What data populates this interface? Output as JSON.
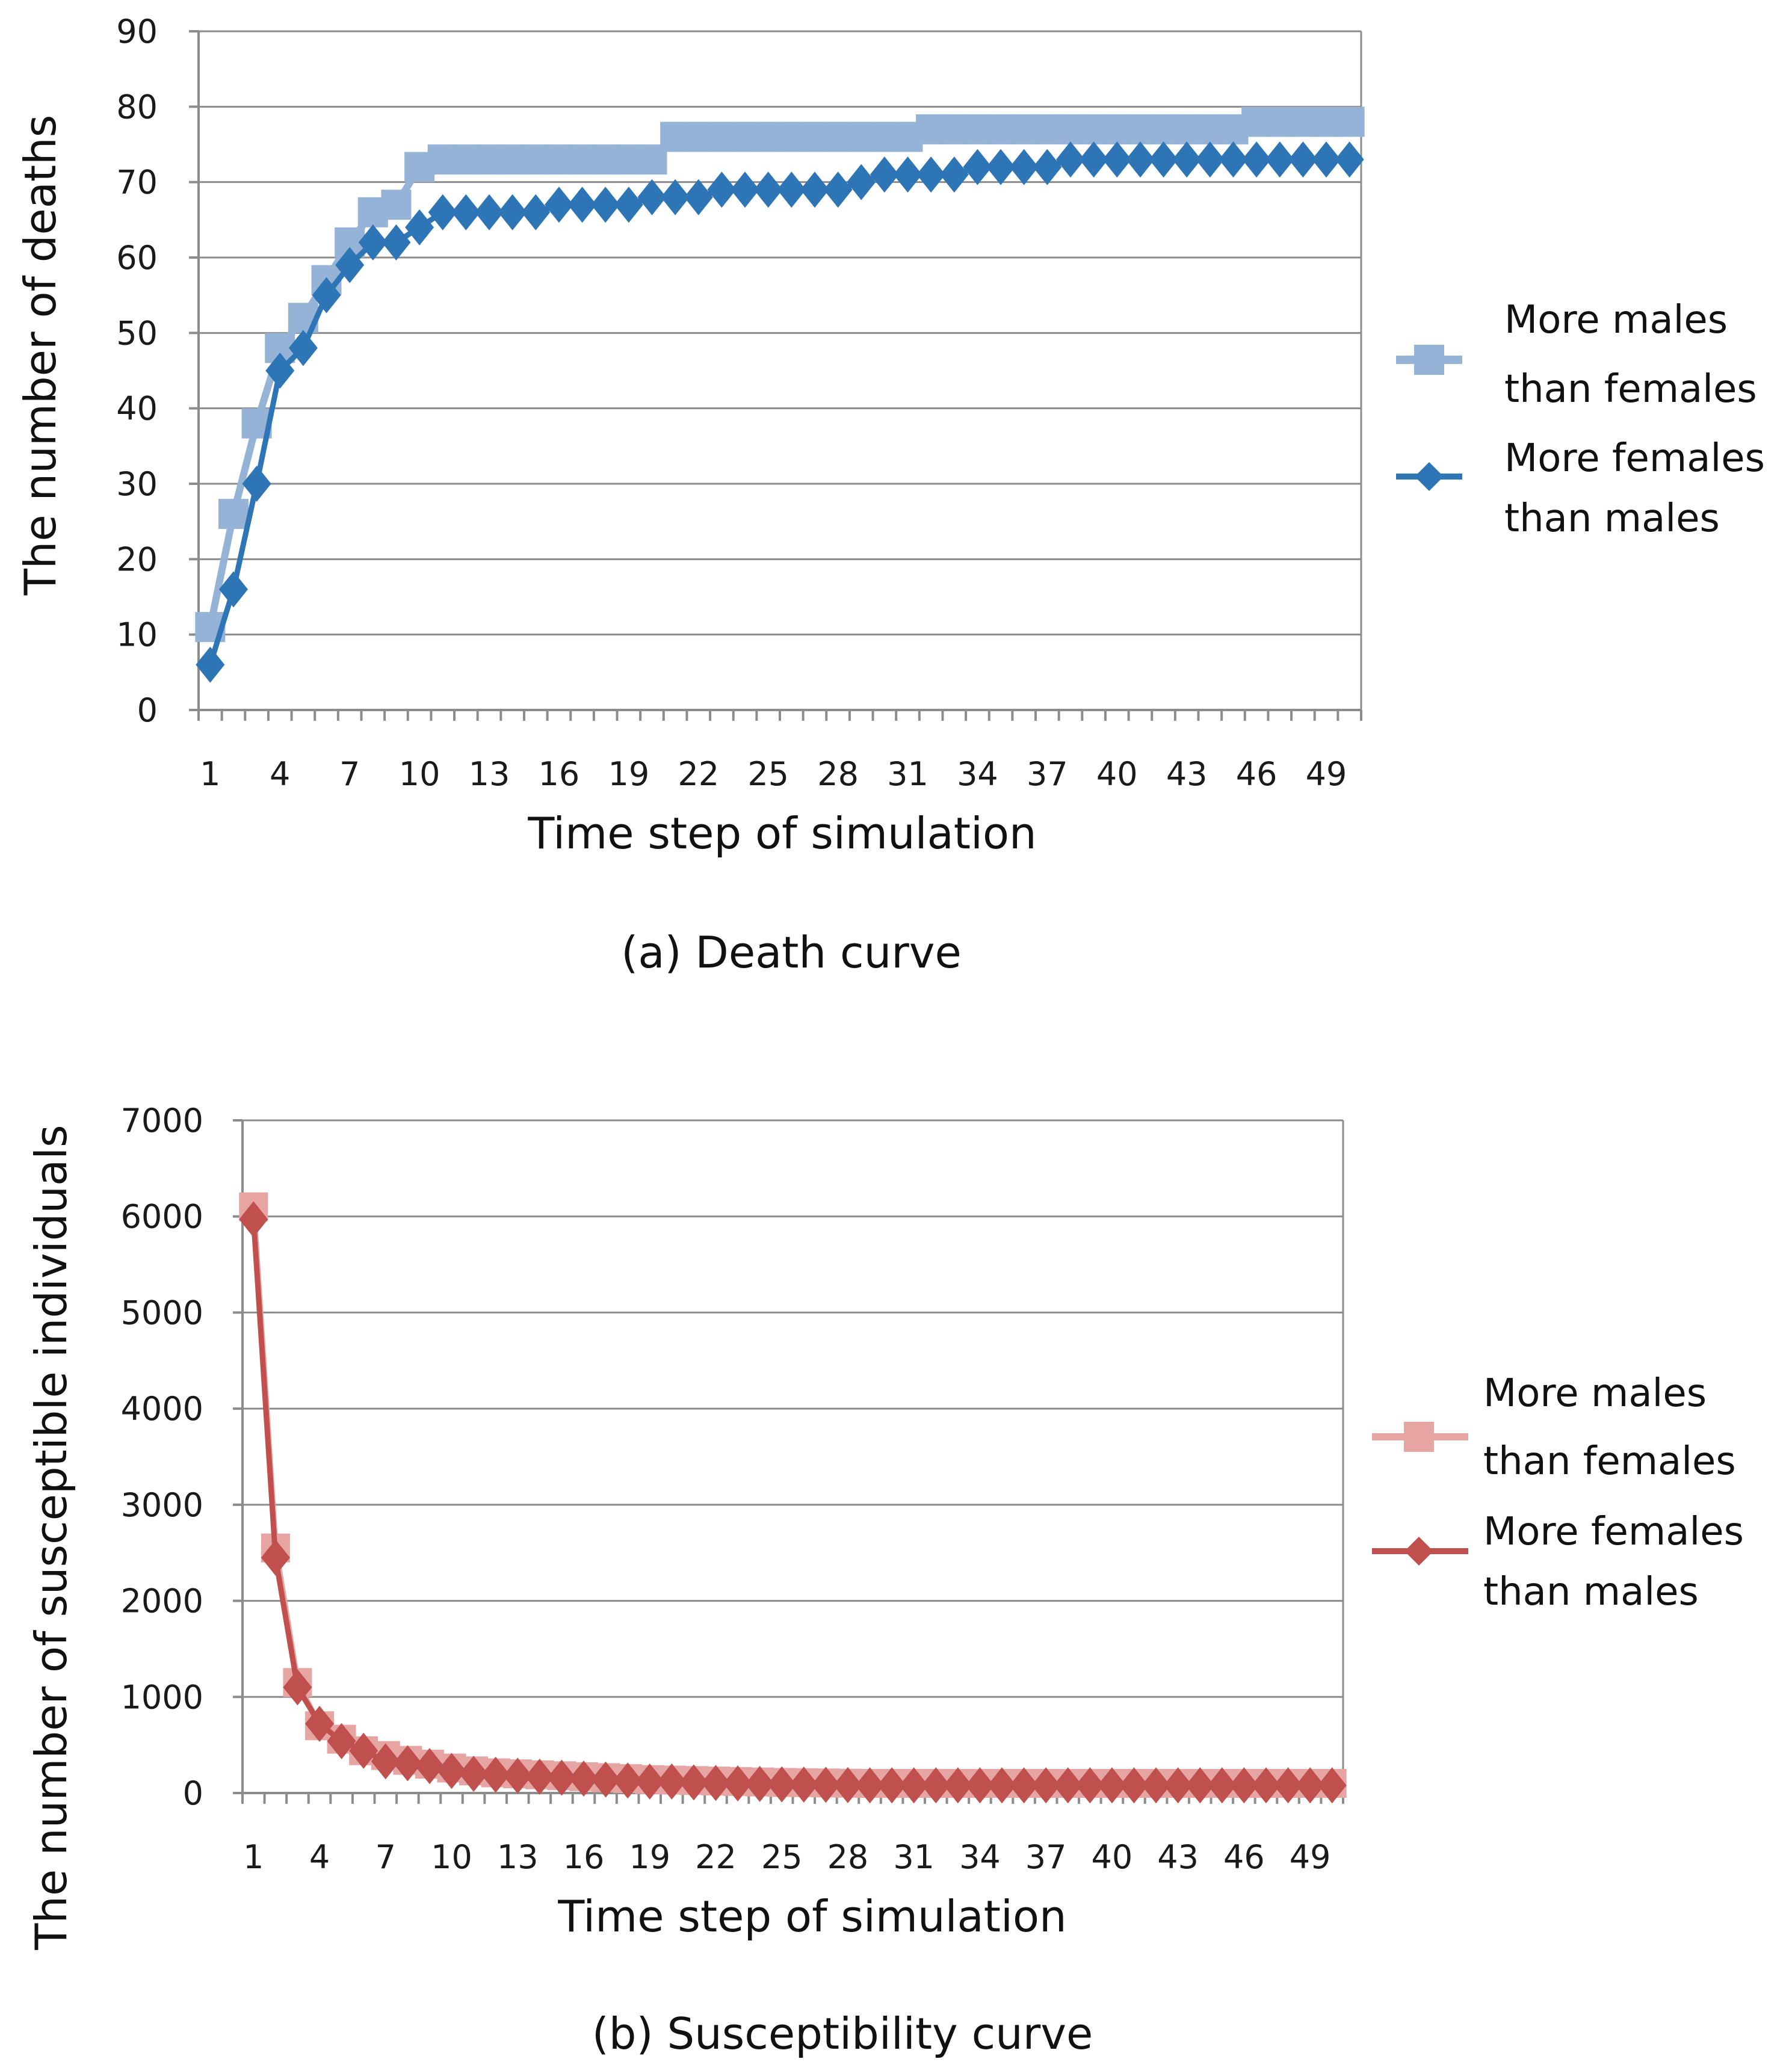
{
  "chart_data": [
    {
      "type": "line",
      "caption": "(a) Death curve",
      "xlabel": "Time step of simulation",
      "ylabel": "The number of deaths",
      "ylim": [
        0,
        90
      ],
      "yticks": [
        "0",
        "10",
        "20",
        "30",
        "40",
        "50",
        "60",
        "70",
        "80",
        "90"
      ],
      "xtick_labels": [
        "1",
        "4",
        "7",
        "10",
        "13",
        "16",
        "19",
        "22",
        "25",
        "28",
        "31",
        "34",
        "37",
        "40",
        "43",
        "46",
        "49"
      ],
      "x": [
        1,
        2,
        3,
        4,
        5,
        6,
        7,
        8,
        9,
        10,
        11,
        12,
        13,
        14,
        15,
        16,
        17,
        18,
        19,
        20,
        21,
        22,
        23,
        24,
        25,
        26,
        27,
        28,
        29,
        30,
        31,
        32,
        33,
        34,
        35,
        36,
        37,
        38,
        39,
        40,
        41,
        42,
        43,
        44,
        45,
        46,
        47,
        48,
        49,
        50
      ],
      "legend_position": "right",
      "series": [
        {
          "name": "More males than females",
          "name_lines": [
            "More males",
            "than females"
          ],
          "marker": "square",
          "color": "#95b3d7",
          "values": [
            11,
            26,
            38,
            48,
            52,
            57,
            62,
            66,
            67,
            72,
            73,
            73,
            73,
            73,
            73,
            73,
            73,
            73,
            73,
            73,
            76,
            76,
            76,
            76,
            76,
            76,
            76,
            76,
            76,
            76,
            76,
            77,
            77,
            77,
            77,
            77,
            77,
            77,
            77,
            77,
            77,
            77,
            77,
            77,
            77,
            78,
            78,
            78,
            78,
            78
          ]
        },
        {
          "name": "More females than males",
          "name_lines": [
            "More females",
            "than males"
          ],
          "marker": "diamond",
          "color": "#2e75b6",
          "values": [
            6,
            16,
            30,
            45,
            48,
            55,
            59,
            62,
            62,
            64,
            66,
            66,
            66,
            66,
            66,
            67,
            67,
            67,
            67,
            68,
            68,
            68,
            69,
            69,
            69,
            69,
            69,
            69,
            70,
            71,
            71,
            71,
            71,
            72,
            72,
            72,
            72,
            73,
            73,
            73,
            73,
            73,
            73,
            73,
            73,
            73,
            73,
            73,
            73,
            73
          ]
        }
      ]
    },
    {
      "type": "line",
      "caption": "(b) Susceptibility curve",
      "xlabel": "Time step of simulation",
      "ylabel": "The number of susceptible  individuals",
      "ylim": [
        0,
        7000
      ],
      "yticks": [
        "0",
        "1000",
        "2000",
        "3000",
        "4000",
        "5000",
        "6000",
        "7000"
      ],
      "xtick_labels": [
        "1",
        "4",
        "7",
        "10",
        "13",
        "16",
        "19",
        "22",
        "25",
        "28",
        "31",
        "34",
        "37",
        "40",
        "43",
        "46",
        "49"
      ],
      "x": [
        1,
        2,
        3,
        4,
        5,
        6,
        7,
        8,
        9,
        10,
        11,
        12,
        13,
        14,
        15,
        16,
        17,
        18,
        19,
        20,
        21,
        22,
        23,
        24,
        25,
        26,
        27,
        28,
        29,
        30,
        31,
        32,
        33,
        34,
        35,
        36,
        37,
        38,
        39,
        40,
        41,
        42,
        43,
        44,
        45,
        46,
        47,
        48,
        49,
        50
      ],
      "legend_position": "right",
      "series": [
        {
          "name": "More males than females",
          "name_lines": [
            "More males",
            "than females"
          ],
          "marker": "square",
          "color": "#e6a5a3",
          "values": [
            6100,
            2550,
            1150,
            700,
            560,
            440,
            390,
            340,
            300,
            260,
            230,
            210,
            200,
            190,
            180,
            170,
            160,
            150,
            140,
            135,
            130,
            125,
            120,
            115,
            110,
            108,
            105,
            102,
            100,
            100,
            100,
            100,
            100,
            100,
            100,
            100,
            100,
            100,
            100,
            100,
            100,
            100,
            100,
            100,
            100,
            100,
            100,
            100,
            100,
            100
          ]
        },
        {
          "name": "More females than males",
          "name_lines": [
            "More females",
            "than males"
          ],
          "marker": "diamond",
          "color": "#c0504d",
          "values": [
            5970,
            2450,
            1100,
            720,
            540,
            440,
            330,
            310,
            280,
            230,
            200,
            190,
            180,
            170,
            160,
            150,
            140,
            130,
            120,
            120,
            110,
            105,
            100,
            95,
            90,
            88,
            85,
            82,
            80,
            80,
            80,
            80,
            80,
            80,
            80,
            80,
            80,
            80,
            80,
            80,
            80,
            80,
            80,
            80,
            80,
            80,
            80,
            80,
            80,
            80
          ]
        }
      ]
    }
  ]
}
